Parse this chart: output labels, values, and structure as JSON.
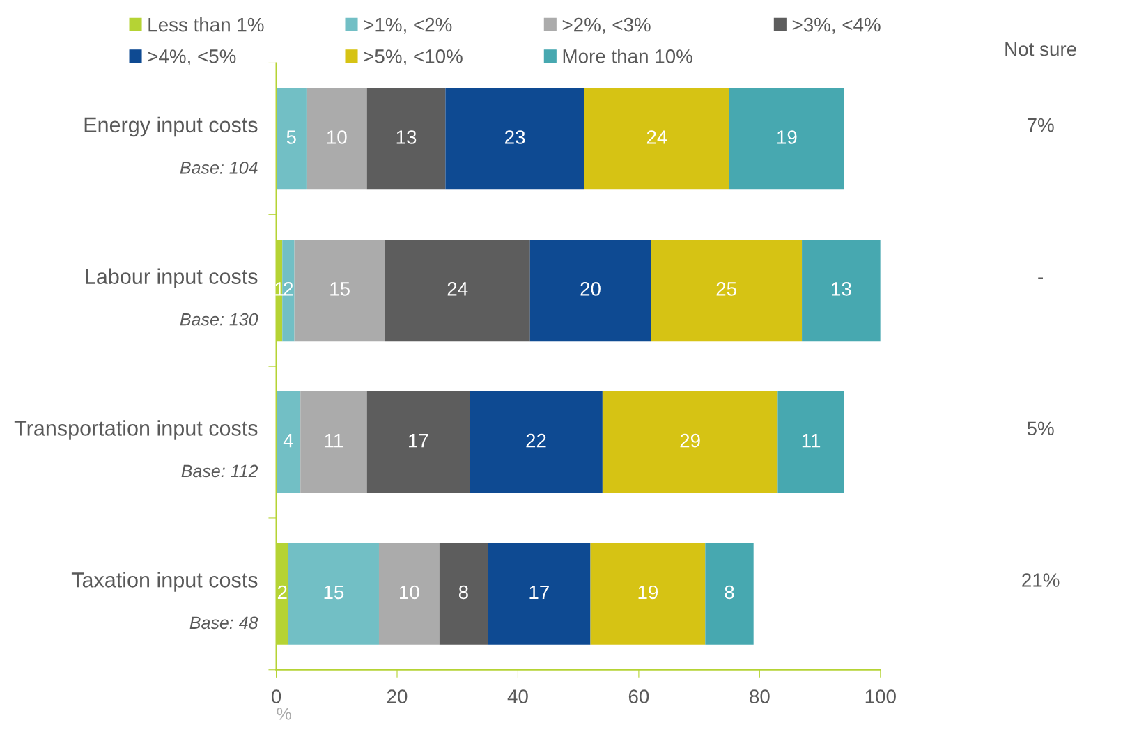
{
  "chart_data": {
    "type": "bar",
    "orientation": "horizontal",
    "stacked": true,
    "data_labels": true,
    "legend": "top",
    "grid": false,
    "categories": [
      "Energy input costs",
      "Labour input costs",
      "Transportation input costs",
      "Taxation input costs"
    ],
    "series": [
      {
        "name": "Less than 1%",
        "color": "#b5d334",
        "values": [
          null,
          1,
          null,
          2
        ]
      },
      {
        "name": ">1%, <2%",
        "color": "#72bfc5",
        "values": [
          5,
          2,
          4,
          15
        ]
      },
      {
        "name": ">2%, <3%",
        "color": "#ababab",
        "values": [
          10,
          15,
          11,
          10
        ]
      },
      {
        "name": ">3%, <4%",
        "color": "#5d5d5d",
        "values": [
          13,
          24,
          17,
          8
        ]
      },
      {
        "name": ">4%, <5%",
        "color": "#0e4a92",
        "values": [
          23,
          20,
          22,
          17
        ]
      },
      {
        "name": ">5%, <10%",
        "color": "#d6c314",
        "values": [
          24,
          25,
          29,
          19
        ]
      },
      {
        "name": "More than 10%",
        "color": "#47a8b0",
        "values": [
          19,
          13,
          11,
          8
        ]
      }
    ],
    "xlim": [
      0,
      100
    ],
    "xticks": [
      0,
      20,
      40,
      60,
      80,
      100
    ],
    "xlabel": "%",
    "annotations": [
      "Base: 104",
      "Base: 130",
      "Base: 112",
      "Base: 48",
      "Not sure",
      "7%",
      "-",
      "5%",
      "21%"
    ]
  }
}
